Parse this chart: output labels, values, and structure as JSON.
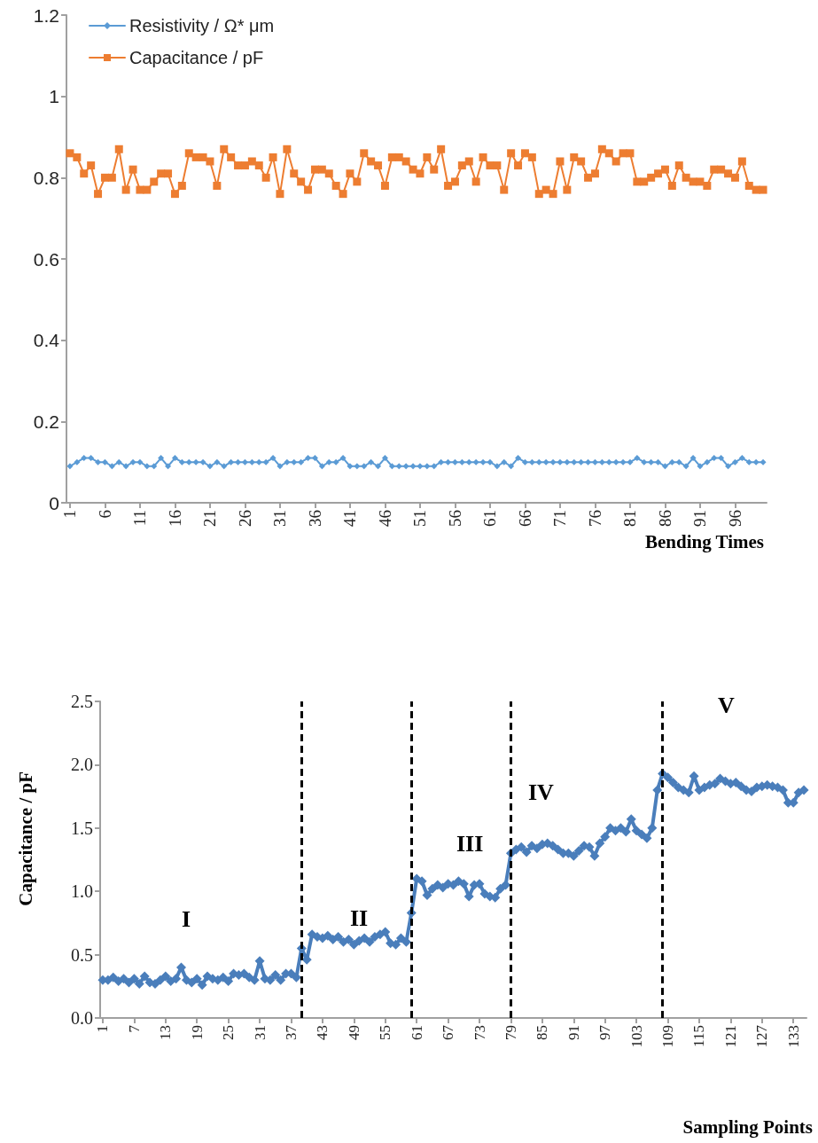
{
  "chart_data": [
    {
      "type": "line",
      "xlabel": "Bending Times",
      "legend": "top left",
      "grid": false,
      "xlim": [
        0.5,
        100.5
      ],
      "xticks": [
        1,
        6,
        11,
        16,
        21,
        26,
        31,
        36,
        41,
        46,
        51,
        56,
        61,
        66,
        71,
        76,
        81,
        86,
        91,
        96
      ],
      "ylim": [
        0,
        1.2
      ],
      "yticks": [
        0,
        0.2,
        0.4,
        0.6,
        0.8,
        1,
        1.2
      ],
      "x": [
        1,
        2,
        3,
        4,
        5,
        6,
        7,
        8,
        9,
        10,
        11,
        12,
        13,
        14,
        15,
        16,
        17,
        18,
        19,
        20,
        21,
        22,
        23,
        24,
        25,
        26,
        27,
        28,
        29,
        30,
        31,
        32,
        33,
        34,
        35,
        36,
        37,
        38,
        39,
        40,
        41,
        42,
        43,
        44,
        45,
        46,
        47,
        48,
        49,
        50,
        51,
        52,
        53,
        54,
        55,
        56,
        57,
        58,
        59,
        60,
        61,
        62,
        63,
        64,
        65,
        66,
        67,
        68,
        69,
        70,
        71,
        72,
        73,
        74,
        75,
        76,
        77,
        78,
        79,
        80,
        81,
        82,
        83,
        84,
        85,
        86,
        87,
        88,
        89,
        90,
        91,
        92,
        93,
        94,
        95,
        96,
        97,
        98,
        99,
        100
      ],
      "series": [
        {
          "name": "Resistivity / Ω* μm",
          "color": "#5b9bd5",
          "marker": "diamond",
          "values": [
            0.09,
            0.1,
            0.11,
            0.11,
            0.1,
            0.1,
            0.09,
            0.1,
            0.09,
            0.1,
            0.1,
            0.09,
            0.09,
            0.11,
            0.09,
            0.11,
            0.1,
            0.1,
            0.1,
            0.1,
            0.09,
            0.1,
            0.09,
            0.1,
            0.1,
            0.1,
            0.1,
            0.1,
            0.1,
            0.11,
            0.09,
            0.1,
            0.1,
            0.1,
            0.11,
            0.11,
            0.09,
            0.1,
            0.1,
            0.11,
            0.09,
            0.09,
            0.09,
            0.1,
            0.09,
            0.11,
            0.09,
            0.09,
            0.09,
            0.09,
            0.09,
            0.09,
            0.09,
            0.1,
            0.1,
            0.1,
            0.1,
            0.1,
            0.1,
            0.1,
            0.1,
            0.09,
            0.1,
            0.09,
            0.11,
            0.1,
            0.1,
            0.1,
            0.1,
            0.1,
            0.1,
            0.1,
            0.1,
            0.1,
            0.1,
            0.1,
            0.1,
            0.1,
            0.1,
            0.1,
            0.1,
            0.11,
            0.1,
            0.1,
            0.1,
            0.09,
            0.1,
            0.1,
            0.09,
            0.11,
            0.09,
            0.1,
            0.11,
            0.11,
            0.09,
            0.1,
            0.11,
            0.1,
            0.1,
            0.1
          ]
        },
        {
          "name": "Capacitance / pF",
          "color": "#ed7d31",
          "marker": "square",
          "values": [
            0.86,
            0.85,
            0.81,
            0.83,
            0.76,
            0.8,
            0.8,
            0.87,
            0.77,
            0.82,
            0.77,
            0.77,
            0.79,
            0.81,
            0.81,
            0.76,
            0.78,
            0.86,
            0.85,
            0.85,
            0.84,
            0.78,
            0.87,
            0.85,
            0.83,
            0.83,
            0.84,
            0.83,
            0.8,
            0.85,
            0.76,
            0.87,
            0.81,
            0.79,
            0.77,
            0.82,
            0.82,
            0.81,
            0.78,
            0.76,
            0.81,
            0.79,
            0.86,
            0.84,
            0.83,
            0.78,
            0.85,
            0.85,
            0.84,
            0.82,
            0.81,
            0.85,
            0.82,
            0.87,
            0.78,
            0.79,
            0.83,
            0.84,
            0.79,
            0.85,
            0.83,
            0.83,
            0.77,
            0.86,
            0.83,
            0.86,
            0.85,
            0.76,
            0.77,
            0.76,
            0.84,
            0.77,
            0.85,
            0.84,
            0.8,
            0.81,
            0.87,
            0.86,
            0.84,
            0.86,
            0.86,
            0.79,
            0.79,
            0.8,
            0.81,
            0.82,
            0.78,
            0.83,
            0.8,
            0.79,
            0.79,
            0.78,
            0.82,
            0.82,
            0.81,
            0.8,
            0.84,
            0.78,
            0.77,
            0.77
          ]
        }
      ]
    },
    {
      "type": "line",
      "xlabel": "Sampling Points",
      "ylabel": "Capacitance / pF",
      "legend": false,
      "grid": false,
      "xlim": [
        0.5,
        135.5
      ],
      "xticks": [
        1,
        7,
        13,
        19,
        25,
        31,
        37,
        43,
        49,
        55,
        61,
        67,
        73,
        79,
        85,
        91,
        97,
        103,
        109,
        115,
        121,
        127,
        133
      ],
      "ylim": [
        0,
        2.5
      ],
      "yticks": [
        {
          "value": 0,
          "label": "0.0"
        },
        {
          "value": 0.5,
          "label": "0.5"
        },
        {
          "value": 1,
          "label": "1.0"
        },
        {
          "value": 1.5,
          "label": "1.5"
        },
        {
          "value": 2,
          "label": "2.0"
        },
        {
          "value": 2.5,
          "label": "2.5"
        }
      ],
      "annotations": [
        "I",
        "II",
        "III",
        "IV",
        "V"
      ],
      "ref_lines": [
        {
          "axis": "x",
          "value": 39,
          "label": null,
          "color": "#000000",
          "line_style": "dashed"
        },
        {
          "axis": "x",
          "value": 60,
          "label": null,
          "color": "#000000",
          "line_style": "dashed"
        },
        {
          "axis": "x",
          "value": 79,
          "label": null,
          "color": "#000000",
          "line_style": "dashed"
        },
        {
          "axis": "x",
          "value": 108,
          "label": null,
          "color": "#000000",
          "line_style": "dashed"
        }
      ],
      "x": [
        1,
        2,
        3,
        4,
        5,
        6,
        7,
        8,
        9,
        10,
        11,
        12,
        13,
        14,
        15,
        16,
        17,
        18,
        19,
        20,
        21,
        22,
        23,
        24,
        25,
        26,
        27,
        28,
        29,
        30,
        31,
        32,
        33,
        34,
        35,
        36,
        37,
        38,
        39,
        40,
        41,
        42,
        43,
        44,
        45,
        46,
        47,
        48,
        49,
        50,
        51,
        52,
        53,
        54,
        55,
        56,
        57,
        58,
        59,
        60,
        61,
        62,
        63,
        64,
        65,
        66,
        67,
        68,
        69,
        70,
        71,
        72,
        73,
        74,
        75,
        76,
        77,
        78,
        79,
        80,
        81,
        82,
        83,
        84,
        85,
        86,
        87,
        88,
        89,
        90,
        91,
        92,
        93,
        94,
        95,
        96,
        97,
        98,
        99,
        100,
        101,
        102,
        103,
        104,
        105,
        106,
        107,
        108,
        109,
        110,
        111,
        112,
        113,
        114,
        115,
        116,
        117,
        118,
        119,
        120,
        121,
        122,
        123,
        124,
        125,
        126,
        127,
        128,
        129,
        130,
        131,
        132,
        133,
        134,
        135
      ],
      "series": [
        {
          "color": "#4a7ebb",
          "marker": "diamond",
          "values": [
            0.3,
            0.3,
            0.32,
            0.29,
            0.31,
            0.28,
            0.31,
            0.27,
            0.33,
            0.28,
            0.27,
            0.3,
            0.33,
            0.29,
            0.31,
            0.4,
            0.3,
            0.28,
            0.31,
            0.26,
            0.33,
            0.31,
            0.3,
            0.32,
            0.29,
            0.35,
            0.34,
            0.35,
            0.32,
            0.3,
            0.45,
            0.31,
            0.3,
            0.34,
            0.3,
            0.35,
            0.35,
            0.32,
            0.55,
            0.46,
            0.66,
            0.64,
            0.63,
            0.65,
            0.62,
            0.64,
            0.6,
            0.62,
            0.58,
            0.61,
            0.63,
            0.6,
            0.64,
            0.66,
            0.68,
            0.59,
            0.58,
            0.63,
            0.6,
            0.83,
            1.1,
            1.08,
            0.97,
            1.02,
            1.05,
            1.03,
            1.06,
            1.05,
            1.08,
            1.06,
            0.96,
            1.05,
            1.06,
            0.98,
            0.96,
            0.95,
            1.02,
            1.05,
            1.3,
            1.33,
            1.35,
            1.31,
            1.36,
            1.34,
            1.37,
            1.38,
            1.36,
            1.33,
            1.3,
            1.3,
            1.28,
            1.32,
            1.36,
            1.35,
            1.28,
            1.38,
            1.43,
            1.5,
            1.48,
            1.5,
            1.47,
            1.57,
            1.48,
            1.45,
            1.42,
            1.5,
            1.8,
            1.93,
            1.9,
            1.86,
            1.82,
            1.8,
            1.78,
            1.91,
            1.8,
            1.82,
            1.84,
            1.85,
            1.89,
            1.87,
            1.85,
            1.86,
            1.83,
            1.8,
            1.79,
            1.82,
            1.83,
            1.84,
            1.83,
            1.82,
            1.8,
            1.7,
            1.7,
            1.78,
            1.8
          ]
        }
      ]
    }
  ]
}
